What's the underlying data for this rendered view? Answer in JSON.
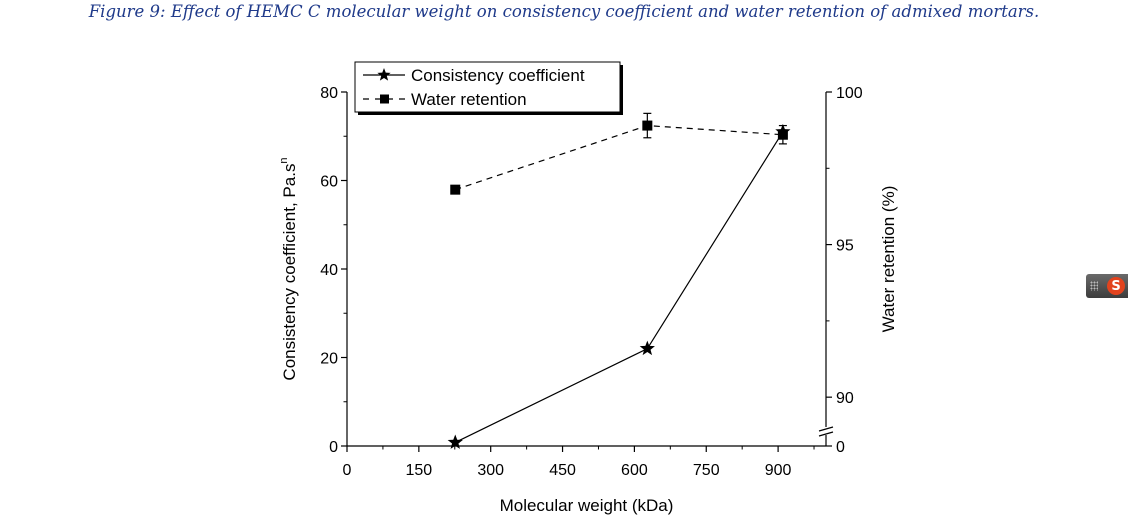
{
  "caption": "Figure 9: Effect of HEMC C molecular weight on consistency coefficient and water retention of admixed mortars.",
  "chart_data": {
    "type": "line",
    "xlabel": "Molecular weight (kDa)",
    "ylabel_left_main": "Consistency coefficient, Pa.s",
    "ylabel_left_sup": "n",
    "ylabel_right": "Water retention (%)",
    "x_ticks": [
      0,
      150,
      300,
      450,
      600,
      750,
      900
    ],
    "xlim": [
      0,
      1000
    ],
    "y_left_ticks": [
      0,
      20,
      40,
      60,
      80
    ],
    "y_left_lim": [
      0,
      80
    ],
    "y_right_ticks": [
      90,
      95,
      100
    ],
    "y_right_bottom_label": "0",
    "y_right_lim": [
      88.4,
      100
    ],
    "legend_position": "top-left",
    "series": [
      {
        "name": "Consistency coefficient",
        "axis": "left",
        "marker": "star",
        "line": "solid",
        "x": [
          226,
          627,
          910
        ],
        "y": [
          0.8,
          22,
          71
        ]
      },
      {
        "name": "Water retention",
        "axis": "right",
        "marker": "square",
        "line": "dashed",
        "x": [
          226,
          627,
          910
        ],
        "y": [
          96.8,
          98.9,
          98.6
        ],
        "errors": [
          0,
          0.4,
          0.3
        ]
      }
    ]
  },
  "widget": {
    "badge": "S",
    "icon": "sogou-s-icon"
  }
}
